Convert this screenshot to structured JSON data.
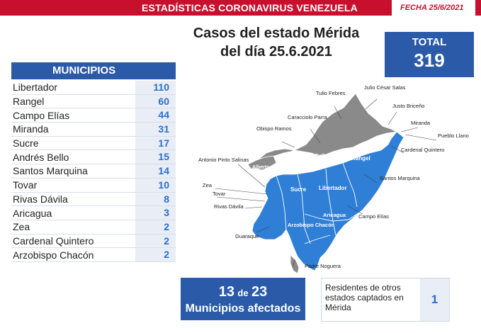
{
  "header": {
    "title": "ESTADÍSTICAS CORONAVIRUS VENEZUELA",
    "date": "FECHA 25/6/2021"
  },
  "heading": {
    "line1": "Casos del estado Mérida",
    "line2": "del día 25.6.2021"
  },
  "total": {
    "label": "TOTAL",
    "value": "319"
  },
  "municipios": {
    "header": "MUNICIPIOS",
    "rows": [
      {
        "name": "Libertador",
        "count": "110"
      },
      {
        "name": "Rangel",
        "count": "60"
      },
      {
        "name": "Campo Elías",
        "count": "44"
      },
      {
        "name": "Miranda",
        "count": "31"
      },
      {
        "name": "Sucre",
        "count": "17"
      },
      {
        "name": "Andrés Bello",
        "count": "15"
      },
      {
        "name": "Santos Marquina",
        "count": "14"
      },
      {
        "name": "Tovar",
        "count": "10"
      },
      {
        "name": "Rivas Dávila",
        "count": "8"
      },
      {
        "name": "Aricagua",
        "count": "3"
      },
      {
        "name": "Zea",
        "count": "2"
      },
      {
        "name": "Cardenal Quintero",
        "count": "2"
      },
      {
        "name": "Arzobispo Chacón",
        "count": "2"
      }
    ]
  },
  "map": {
    "affected_color": "#2f7fd6",
    "unaffected_color": "#8a8a8a",
    "inner_labels": {
      "andres_bello": "Andrés Bello",
      "rangel": "Rangel",
      "alberto_adriani": "Alberto Adriani",
      "sucre": "Sucre",
      "libertador": "Libertador",
      "aricagua": "Aricagua",
      "arzobispo_chacon": "Arzobispo Chacón"
    },
    "callouts": {
      "tulio_febres": "Tulio Febres",
      "julio_cesar_salas": "Julio César Salas",
      "caracciolo_parra": "Caracciolo Parra",
      "justo_briceno": "Justo Briceño",
      "miranda": "Miranda",
      "obispo_ramos": "Obispo Ramos",
      "pueblo_llano": "Pueblo Llano",
      "cardenal_quintero": "Cardenal Quintero",
      "antonio_pinto_salinas": "Antonio Pinto Salinas",
      "santos_marquina": "Santos Marquina",
      "zea": "Zea",
      "tovar": "Tovar",
      "rivas_davila": "Rivas Dávila",
      "campo_elias": "Campo Elías",
      "guaraque": "Guaraque",
      "padre_noguera": "Padre Noguera"
    }
  },
  "summary": {
    "affected_count": "13",
    "connector": "de",
    "total_municipios": "23",
    "affected_label": "Municipios afectados",
    "residents_text": "Residentes de otros estados captados en Mérida",
    "residents_value": "1"
  }
}
